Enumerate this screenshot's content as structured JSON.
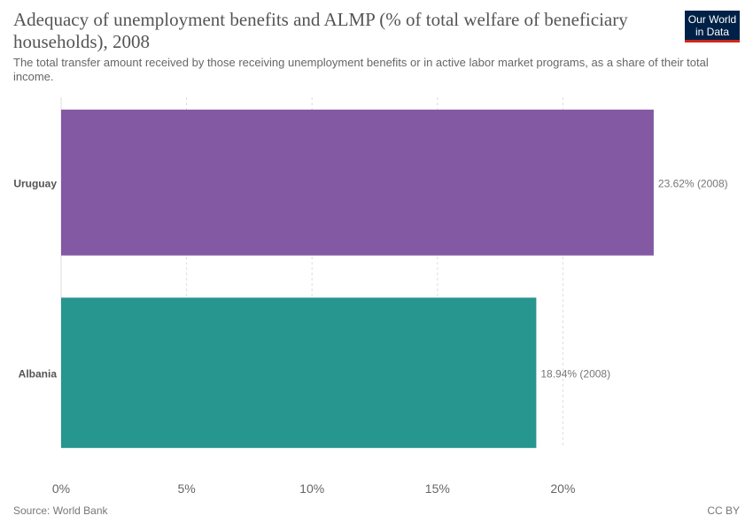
{
  "header": {
    "title": "Adequacy of unemployment benefits and ALMP (% of total welfare of beneficiary households), 2008",
    "subtitle": "The total transfer amount received by those receiving unemployment benefits or in active labor market programs, as a share of their total income.",
    "logo_line1": "Our World",
    "logo_line2": "in Data"
  },
  "footer": {
    "source": "Source: World Bank",
    "license": "CC BY"
  },
  "chart_data": {
    "type": "bar",
    "orientation": "horizontal",
    "categories": [
      "Uruguay",
      "Albania"
    ],
    "values": [
      23.62,
      18.94
    ],
    "value_labels": [
      "23.62% (2008)",
      "18.94% (2008)"
    ],
    "colors": [
      "#8359a3",
      "#26968f"
    ],
    "xlim": [
      0,
      25
    ],
    "xticks": [
      0,
      5,
      10,
      15,
      20
    ],
    "xtick_labels": [
      "0%",
      "5%",
      "10%",
      "15%",
      "20%"
    ],
    "grid": true
  }
}
